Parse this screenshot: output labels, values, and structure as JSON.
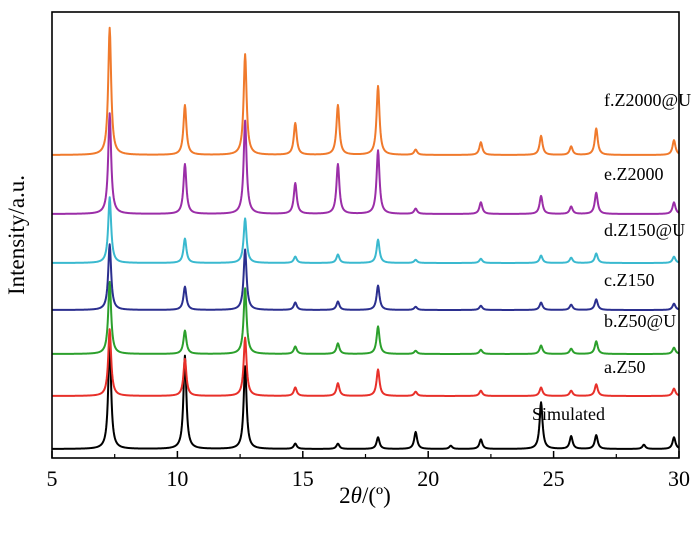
{
  "chart_data": {
    "type": "line",
    "xlabel_prefix": "2",
    "xlabel_theta": "θ",
    "xlabel_suffix": "/(º)",
    "ylabel": "Intensity/a.u.",
    "xlim": [
      5,
      30
    ],
    "xticks": [
      "5",
      "10",
      "15",
      "20",
      "25",
      "30"
    ],
    "yticks_shown": false,
    "series": [
      {
        "name": "Simulated",
        "color": "#000000",
        "baseline": 0,
        "peaks": [
          [
            7.3,
            1.0
          ],
          [
            10.3,
            0.88
          ],
          [
            12.7,
            0.78
          ],
          [
            14.7,
            0.05
          ],
          [
            16.4,
            0.05
          ],
          [
            18.0,
            0.11
          ],
          [
            19.5,
            0.16
          ],
          [
            20.9,
            0.03
          ],
          [
            22.1,
            0.09
          ],
          [
            24.5,
            0.44
          ],
          [
            25.7,
            0.12
          ],
          [
            26.7,
            0.13
          ],
          [
            28.6,
            0.04
          ],
          [
            29.8,
            0.11
          ]
        ]
      },
      {
        "name": "a.Z50",
        "color": "#e8302a",
        "baseline": 1,
        "peaks": [
          [
            7.3,
            0.63
          ],
          [
            10.3,
            0.35
          ],
          [
            12.7,
            0.55
          ],
          [
            14.7,
            0.08
          ],
          [
            16.4,
            0.12
          ],
          [
            18.0,
            0.25
          ],
          [
            19.5,
            0.04
          ],
          [
            22.1,
            0.05
          ],
          [
            24.5,
            0.08
          ],
          [
            25.7,
            0.05
          ],
          [
            26.7,
            0.11
          ],
          [
            29.8,
            0.07
          ]
        ]
      },
      {
        "name": "b.Z50@U",
        "color": "#2ca02c",
        "baseline": 2,
        "peaks": [
          [
            7.3,
            0.68
          ],
          [
            10.3,
            0.22
          ],
          [
            12.7,
            0.62
          ],
          [
            14.7,
            0.07
          ],
          [
            16.4,
            0.1
          ],
          [
            18.0,
            0.26
          ],
          [
            19.5,
            0.03
          ],
          [
            22.1,
            0.04
          ],
          [
            24.5,
            0.08
          ],
          [
            25.7,
            0.05
          ],
          [
            26.7,
            0.12
          ],
          [
            29.8,
            0.06
          ]
        ]
      },
      {
        "name": "c.Z150",
        "color": "#2b2f8f",
        "baseline": 3,
        "peaks": [
          [
            7.3,
            0.62
          ],
          [
            10.3,
            0.22
          ],
          [
            12.7,
            0.57
          ],
          [
            14.7,
            0.07
          ],
          [
            16.4,
            0.08
          ],
          [
            18.0,
            0.23
          ],
          [
            19.5,
            0.03
          ],
          [
            22.1,
            0.04
          ],
          [
            24.5,
            0.07
          ],
          [
            25.7,
            0.05
          ],
          [
            26.7,
            0.1
          ],
          [
            29.8,
            0.06
          ]
        ]
      },
      {
        "name": "d.Z150@U",
        "color": "#3ab9cf",
        "baseline": 4,
        "peaks": [
          [
            7.3,
            0.62
          ],
          [
            10.3,
            0.23
          ],
          [
            12.7,
            0.42
          ],
          [
            14.7,
            0.06
          ],
          [
            16.4,
            0.08
          ],
          [
            18.0,
            0.22
          ],
          [
            19.5,
            0.03
          ],
          [
            22.1,
            0.04
          ],
          [
            24.5,
            0.07
          ],
          [
            25.7,
            0.05
          ],
          [
            26.7,
            0.09
          ],
          [
            29.8,
            0.06
          ]
        ]
      },
      {
        "name": "e.Z2000",
        "color": "#9b2ea8",
        "baseline": 5,
        "peaks": [
          [
            7.3,
            0.95
          ],
          [
            10.3,
            0.47
          ],
          [
            12.7,
            0.88
          ],
          [
            14.7,
            0.29
          ],
          [
            16.4,
            0.47
          ],
          [
            18.0,
            0.6
          ],
          [
            19.5,
            0.05
          ],
          [
            22.1,
            0.11
          ],
          [
            24.5,
            0.17
          ],
          [
            25.7,
            0.07
          ],
          [
            26.7,
            0.2
          ],
          [
            29.8,
            0.11
          ]
        ]
      },
      {
        "name": "f.Z2000@U",
        "color": "#f07a2c",
        "baseline": 6,
        "peaks": [
          [
            7.3,
            1.2
          ],
          [
            10.3,
            0.47
          ],
          [
            12.7,
            0.95
          ],
          [
            14.7,
            0.3
          ],
          [
            16.4,
            0.47
          ],
          [
            18.0,
            0.65
          ],
          [
            19.5,
            0.05
          ],
          [
            22.1,
            0.12
          ],
          [
            24.5,
            0.18
          ],
          [
            25.7,
            0.08
          ],
          [
            26.7,
            0.25
          ],
          [
            29.8,
            0.14
          ]
        ]
      }
    ]
  }
}
